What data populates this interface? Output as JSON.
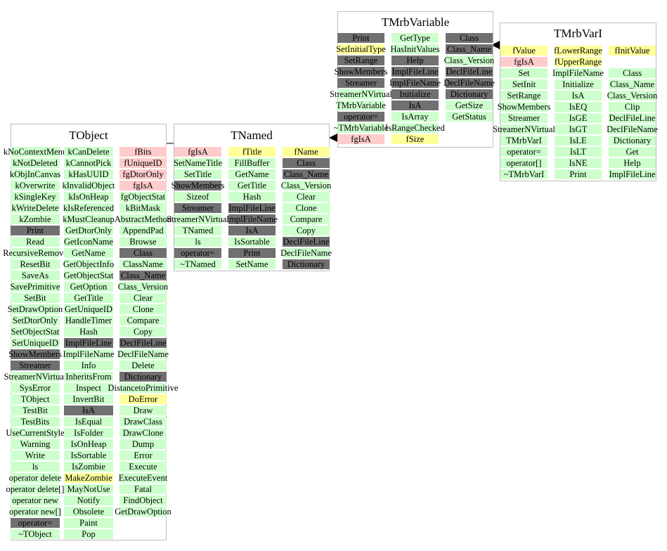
{
  "colors": {
    "public": "#ccffcc",
    "protected": "#707070",
    "highlight": "#ffff99",
    "static": "#ffcccc",
    "border": "#bdbdbd",
    "arrow": "#000000"
  },
  "classes": {
    "tobject": {
      "name": "TObject",
      "columns": [
        [
          [
            "kNoContextMenu",
            "p"
          ],
          [
            "kNotDeleted",
            "p"
          ],
          [
            "kObjInCanvas",
            "p"
          ],
          [
            "kOverwrite",
            "p"
          ],
          [
            "kSingleKey",
            "p"
          ],
          [
            "kWriteDelete",
            "p"
          ],
          [
            "kZombie",
            "p"
          ],
          [
            "Print",
            "r"
          ],
          [
            "Read",
            "p"
          ],
          [
            "RecursiveRemove",
            "p"
          ],
          [
            "ResetBit",
            "p"
          ],
          [
            "SaveAs",
            "p"
          ],
          [
            "SavePrimitive",
            "p"
          ],
          [
            "SetBit",
            "p"
          ],
          [
            "SetDrawOption",
            "p"
          ],
          [
            "SetDtorOnly",
            "p"
          ],
          [
            "SetObjectStat",
            "p"
          ],
          [
            "SetUniqueID",
            "p"
          ],
          [
            "ShowMembers",
            "r"
          ],
          [
            "Streamer",
            "r"
          ],
          [
            "StreamerNVirtual",
            "p"
          ],
          [
            "SysError",
            "p"
          ],
          [
            "TObject",
            "p"
          ],
          [
            "TestBit",
            "p"
          ],
          [
            "TestBits",
            "p"
          ],
          [
            "UseCurrentStyle",
            "p"
          ],
          [
            "Warning",
            "p"
          ],
          [
            "Write",
            "p"
          ],
          [
            "ls",
            "p"
          ],
          [
            "operator delete",
            "p"
          ],
          [
            "operator delete[]",
            "p"
          ],
          [
            "operator new",
            "p"
          ],
          [
            "operator new[]",
            "p"
          ],
          [
            "operator=",
            "r"
          ],
          [
            "~TObject",
            "p"
          ]
        ],
        [
          [
            "kCanDelete",
            "p"
          ],
          [
            "kCannotPick",
            "p"
          ],
          [
            "kHasUUID",
            "p"
          ],
          [
            "kInvalidObject",
            "p"
          ],
          [
            "kIsOnHeap",
            "p"
          ],
          [
            "kIsReferenced",
            "p"
          ],
          [
            "kMustCleanup",
            "p"
          ],
          [
            "GetDtorOnly",
            "p"
          ],
          [
            "GetIconName",
            "p"
          ],
          [
            "GetName",
            "p"
          ],
          [
            "GetObjectInfo",
            "p"
          ],
          [
            "GetObjectStat",
            "p"
          ],
          [
            "GetOption",
            "p"
          ],
          [
            "GetTitle",
            "p"
          ],
          [
            "GetUniqueID",
            "p"
          ],
          [
            "HandleTimer",
            "p"
          ],
          [
            "Hash",
            "p"
          ],
          [
            "ImplFileLine",
            "r"
          ],
          [
            "ImplFileName",
            "p"
          ],
          [
            "Info",
            "p"
          ],
          [
            "InheritsFrom",
            "p"
          ],
          [
            "Inspect",
            "p"
          ],
          [
            "InvertBit",
            "p"
          ],
          [
            "IsA",
            "r"
          ],
          [
            "IsEqual",
            "p"
          ],
          [
            "IsFolder",
            "p"
          ],
          [
            "IsOnHeap",
            "p"
          ],
          [
            "IsSortable",
            "p"
          ],
          [
            "IsZombie",
            "p"
          ],
          [
            "MakeZombie",
            "y"
          ],
          [
            "MayNotUse",
            "p"
          ],
          [
            "Notify",
            "p"
          ],
          [
            "Obsolete",
            "p"
          ],
          [
            "Paint",
            "p"
          ],
          [
            "Pop",
            "p"
          ]
        ],
        [
          [
            "fBits",
            "d"
          ],
          [
            "fUniqueID",
            "d"
          ],
          [
            "fgDtorOnly",
            "d"
          ],
          [
            "fgIsA",
            "d"
          ],
          [
            "fgObjectStat",
            "p"
          ],
          [
            "kBitMask",
            "p"
          ],
          [
            "AbstractMethod",
            "p"
          ],
          [
            "AppendPad",
            "p"
          ],
          [
            "Browse",
            "p"
          ],
          [
            "Class",
            "r"
          ],
          [
            "ClassName",
            "p"
          ],
          [
            "Class_Name",
            "r"
          ],
          [
            "Class_Version",
            "p"
          ],
          [
            "Clear",
            "p"
          ],
          [
            "Clone",
            "p"
          ],
          [
            "Compare",
            "p"
          ],
          [
            "Copy",
            "p"
          ],
          [
            "DeclFileLine",
            "r"
          ],
          [
            "DeclFileName",
            "p"
          ],
          [
            "Delete",
            "p"
          ],
          [
            "Dictionary",
            "r"
          ],
          [
            "DistancetoPrimitive",
            "p"
          ],
          [
            "DoError",
            "y"
          ],
          [
            "Draw",
            "p"
          ],
          [
            "DrawClass",
            "p"
          ],
          [
            "DrawClone",
            "p"
          ],
          [
            "Dump",
            "p"
          ],
          [
            "Error",
            "p"
          ],
          [
            "Execute",
            "p"
          ],
          [
            "ExecuteEvent",
            "p"
          ],
          [
            "Fatal",
            "p"
          ],
          [
            "FindObject",
            "p"
          ],
          [
            "GetDrawOption",
            "p"
          ]
        ]
      ]
    },
    "tnamed": {
      "name": "TNamed",
      "columns": [
        [
          [
            "fgIsA",
            "d"
          ],
          [
            "SetNameTitle",
            "p"
          ],
          [
            "SetTitle",
            "p"
          ],
          [
            "ShowMembers",
            "r"
          ],
          [
            "Sizeof",
            "p"
          ],
          [
            "Streamer",
            "r"
          ],
          [
            "StreamerNVirtual",
            "p"
          ],
          [
            "TNamed",
            "p"
          ],
          [
            "ls",
            "p"
          ],
          [
            "operator=",
            "r"
          ],
          [
            "~TNamed",
            "p"
          ]
        ],
        [
          [
            "fTitle",
            "y"
          ],
          [
            "FillBuffer",
            "p"
          ],
          [
            "GetName",
            "p"
          ],
          [
            "GetTitle",
            "p"
          ],
          [
            "Hash",
            "p"
          ],
          [
            "ImplFileLine",
            "r"
          ],
          [
            "ImplFileName",
            "r"
          ],
          [
            "IsA",
            "r"
          ],
          [
            "IsSortable",
            "p"
          ],
          [
            "Print",
            "r"
          ],
          [
            "SetName",
            "p"
          ]
        ],
        [
          [
            "fName",
            "y"
          ],
          [
            "Class",
            "r"
          ],
          [
            "Class_Name",
            "r"
          ],
          [
            "Class_Version",
            "p"
          ],
          [
            "Clear",
            "p"
          ],
          [
            "Clone",
            "p"
          ],
          [
            "Compare",
            "p"
          ],
          [
            "Copy",
            "p"
          ],
          [
            "DeclFileLine",
            "r"
          ],
          [
            "DeclFileName",
            "p"
          ],
          [
            "Dictionary",
            "r"
          ]
        ]
      ]
    },
    "tmrbvariable": {
      "name": "TMrbVariable",
      "columns": [
        [
          [
            "Print",
            "r"
          ],
          [
            "SetInitialType",
            "y"
          ],
          [
            "SetRange",
            "r"
          ],
          [
            "ShowMembers",
            "r"
          ],
          [
            "Streamer",
            "r"
          ],
          [
            "StreamerNVirtual",
            "p"
          ],
          [
            "TMrbVariable",
            "p"
          ],
          [
            "operator=",
            "r"
          ],
          [
            "~TMrbVariable",
            "p"
          ],
          [
            "fgIsA",
            "d"
          ]
        ],
        [
          [
            "GetType",
            "p"
          ],
          [
            "HasInitValues",
            "p"
          ],
          [
            "Help",
            "r"
          ],
          [
            "ImplFileLine",
            "r"
          ],
          [
            "ImplFileName",
            "r"
          ],
          [
            "Initialize",
            "r"
          ],
          [
            "IsA",
            "r"
          ],
          [
            "IsArray",
            "p"
          ],
          [
            "IsRangeChecked",
            "p"
          ],
          [
            "fSize",
            "y"
          ]
        ],
        [
          [
            "Class",
            "r"
          ],
          [
            "Class_Name",
            "r"
          ],
          [
            "Class_Version",
            "p"
          ],
          [
            "DeclFileLine",
            "r"
          ],
          [
            "DeclFileName",
            "r"
          ],
          [
            "Dictionary",
            "r"
          ],
          [
            "GetSize",
            "p"
          ],
          [
            "GetStatus",
            "p"
          ]
        ]
      ]
    },
    "tmrbvari": {
      "name": "TMrbVarI",
      "columns": [
        [
          [
            "fValue",
            "y"
          ],
          [
            "fgIsA",
            "d"
          ],
          [
            "Set",
            "p"
          ],
          [
            "SetInit",
            "p"
          ],
          [
            "SetRange",
            "p"
          ],
          [
            "ShowMembers",
            "p"
          ],
          [
            "Streamer",
            "p"
          ],
          [
            "StreamerNVirtual",
            "p"
          ],
          [
            "TMrbVarI",
            "p"
          ],
          [
            "operator=",
            "p"
          ],
          [
            "operator[]",
            "p"
          ],
          [
            "~TMrbVarI",
            "p"
          ]
        ],
        [
          [
            "fLowerRange",
            "y"
          ],
          [
            "fUpperRange",
            "y"
          ],
          [
            "ImplFileName",
            "p"
          ],
          [
            "Initialize",
            "p"
          ],
          [
            "IsA",
            "p"
          ],
          [
            "IsEQ",
            "p"
          ],
          [
            "IsGE",
            "p"
          ],
          [
            "IsGT",
            "p"
          ],
          [
            "IsLE",
            "p"
          ],
          [
            "IsLT",
            "p"
          ],
          [
            "IsNE",
            "p"
          ],
          [
            "Print",
            "p"
          ]
        ],
        [
          [
            "fInitValue",
            "y"
          ],
          [
            "",
            "n"
          ],
          [
            "Class",
            "p"
          ],
          [
            "Class_Name",
            "p"
          ],
          [
            "Class_Version",
            "p"
          ],
          [
            "Clip",
            "p"
          ],
          [
            "DeclFileLine",
            "p"
          ],
          [
            "DeclFileName",
            "p"
          ],
          [
            "Dictionary",
            "p"
          ],
          [
            "Get",
            "p"
          ],
          [
            "Help",
            "p"
          ],
          [
            "ImplFileLine",
            "p"
          ]
        ]
      ]
    }
  }
}
